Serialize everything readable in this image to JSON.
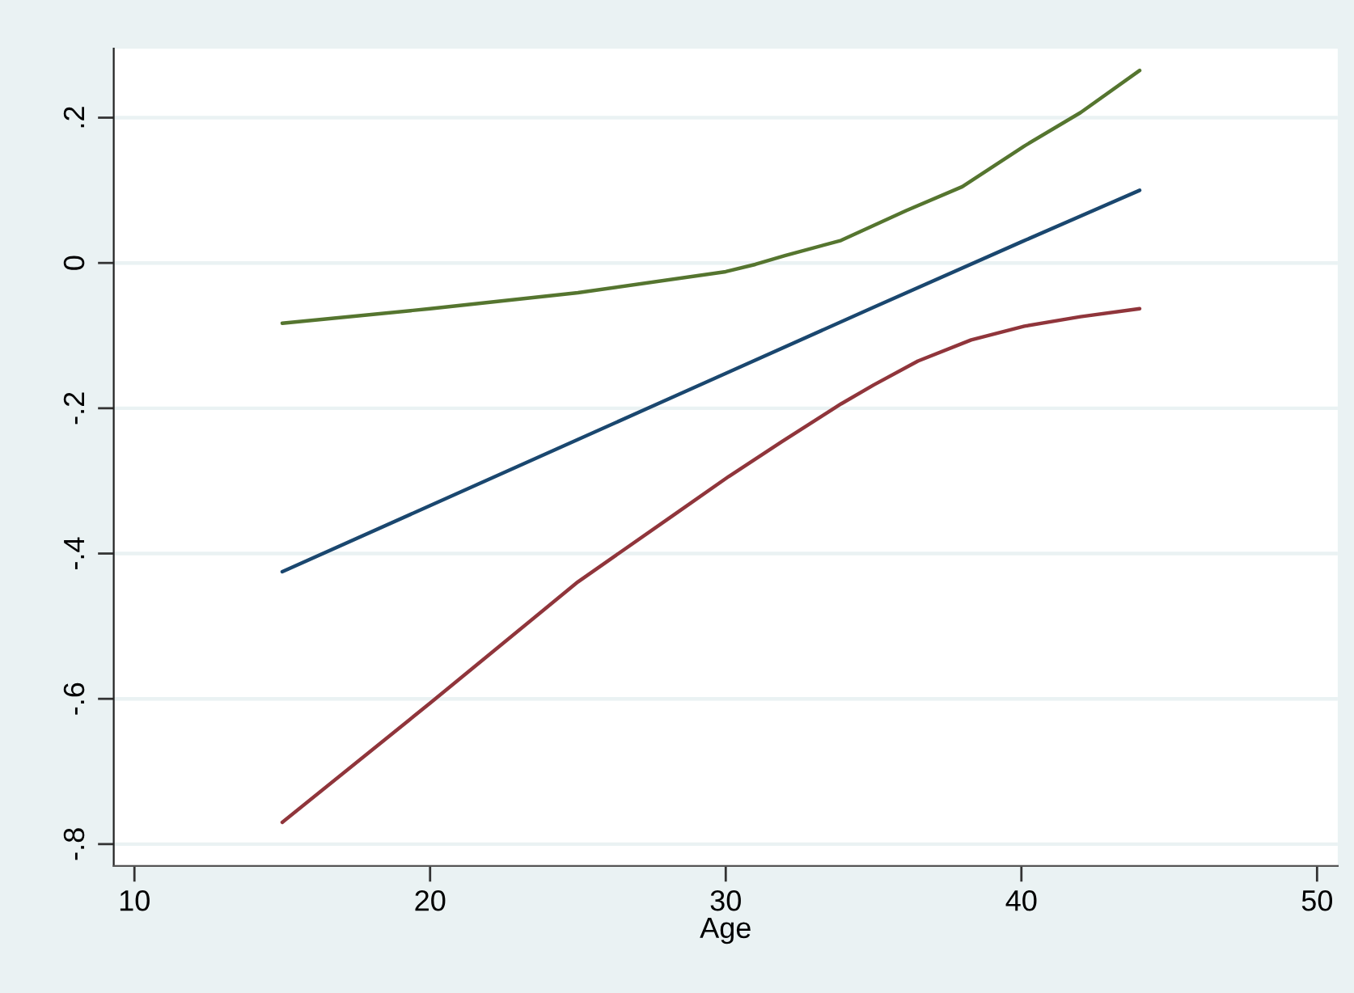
{
  "chart_data": {
    "type": "line",
    "xlabel": "Age",
    "xlim": [
      9.3,
      50.7
    ],
    "xticks": [
      10,
      20,
      30,
      40,
      50
    ],
    "ylim": [
      -0.83,
      0.295
    ],
    "yticks": [
      {
        "value": -0.8,
        "label": "-.8"
      },
      {
        "value": -0.6,
        "label": "-.6"
      },
      {
        "value": -0.4,
        "label": "-.4"
      },
      {
        "value": -0.2,
        "label": "-.2"
      },
      {
        "value": 0,
        "label": "0"
      },
      {
        "value": 0.2,
        "label": ".2"
      }
    ],
    "grid": "y",
    "marker": "none",
    "line_style": "solid",
    "series": [
      {
        "color": "#1a476f",
        "x": [
          15,
          20,
          25,
          30,
          35,
          40,
          44
        ],
        "values": [
          -0.425,
          -0.334,
          -0.243,
          -0.152,
          -0.061,
          0.029,
          0.1
        ]
      },
      {
        "color": "#90353b",
        "x": [
          15,
          20,
          25,
          28.2,
          30.1,
          31.9,
          33.9,
          35,
          36.5,
          38.3,
          40.1,
          42,
          44
        ],
        "values": [
          -0.77,
          -0.606,
          -0.439,
          -0.348,
          -0.294,
          -0.246,
          -0.194,
          -0.168,
          -0.135,
          -0.106,
          -0.087,
          -0.074,
          -0.063
        ]
      },
      {
        "color": "#55752f",
        "x": [
          15,
          20,
          25,
          30,
          31,
          32,
          33.9,
          36.1,
          38,
          40.1,
          42,
          44
        ],
        "values": [
          -0.083,
          -0.063,
          -0.041,
          -0.012,
          -0.002,
          0.01,
          0.031,
          0.072,
          0.105,
          0.161,
          0.207,
          0.265
        ]
      }
    ]
  }
}
